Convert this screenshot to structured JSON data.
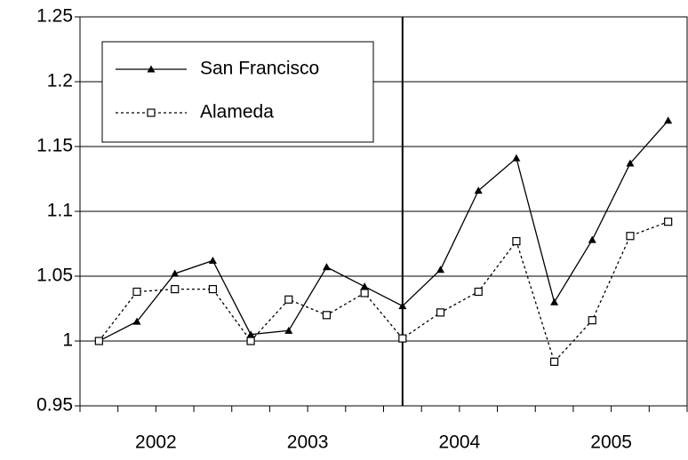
{
  "chart_data": {
    "type": "line",
    "categories": [
      "2002",
      null,
      null,
      null,
      "2003",
      null,
      null,
      null,
      "2004",
      null,
      null,
      null,
      "2005",
      null,
      null,
      null
    ],
    "series": [
      {
        "name": "San Francisco",
        "color": "#000000",
        "marker": "triangle",
        "dash": "solid",
        "values": [
          1.0,
          1.015,
          1.052,
          1.062,
          1.005,
          1.008,
          1.057,
          1.042,
          1.027,
          1.055,
          1.116,
          1.141,
          1.03,
          1.078,
          1.137,
          1.17
        ]
      },
      {
        "name": "Alameda",
        "color": "#000000",
        "marker": "square",
        "dash": "dotted",
        "values": [
          1.0,
          1.038,
          1.04,
          1.04,
          1.0,
          1.032,
          1.02,
          1.037,
          1.002,
          1.022,
          1.038,
          1.077,
          0.984,
          1.016,
          1.081,
          1.092
        ]
      }
    ],
    "ylim": [
      0.95,
      1.25
    ],
    "yticks": [
      0.95,
      1,
      1.05,
      1.1,
      1.15,
      1.2,
      1.25
    ],
    "grid": true,
    "legend": "upper left",
    "vertical_line_at": "2004"
  }
}
